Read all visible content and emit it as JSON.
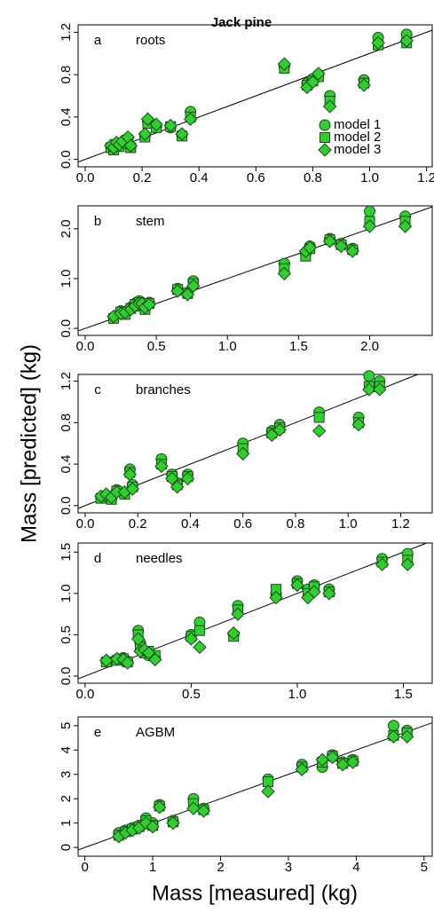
{
  "chart_data": [
    {
      "type": "scatter",
      "title": "Jack pine",
      "panel": "a",
      "subtitle": "roots",
      "legend": "right",
      "x": [
        0.09,
        0.1,
        0.11,
        0.12,
        0.13,
        0.15,
        0.16,
        0.21,
        0.22,
        0.25,
        0.3,
        0.34,
        0.37,
        0.7,
        0.78,
        0.8,
        0.82,
        0.86,
        0.98,
        1.03,
        1.13
      ],
      "series": [
        {
          "name": "model 1",
          "marker": "circle",
          "color": "#33cc33",
          "values": [
            0.12,
            0.1,
            0.15,
            0.13,
            0.16,
            0.2,
            0.12,
            0.22,
            0.36,
            0.31,
            0.3,
            0.23,
            0.45,
            0.88,
            0.72,
            0.76,
            0.8,
            0.6,
            0.75,
            1.15,
            1.18
          ]
        },
        {
          "name": "model 2",
          "marker": "square",
          "color": "#33cc33",
          "values": [
            0.11,
            0.09,
            0.14,
            0.12,
            0.15,
            0.18,
            0.11,
            0.21,
            0.34,
            0.3,
            0.31,
            0.22,
            0.4,
            0.86,
            0.7,
            0.74,
            0.78,
            0.55,
            0.72,
            1.08,
            1.1
          ]
        },
        {
          "name": "model 3",
          "marker": "diamond",
          "color": "#33cc33",
          "values": [
            0.13,
            0.11,
            0.16,
            0.14,
            0.17,
            0.21,
            0.13,
            0.24,
            0.38,
            0.33,
            0.32,
            0.24,
            0.38,
            0.9,
            0.68,
            0.73,
            0.81,
            0.5,
            0.7,
            1.1,
            1.12
          ]
        }
      ],
      "xlim": [
        -0.025,
        1.22
      ],
      "ylim": [
        -0.07,
        1.27
      ],
      "xticks": [
        {
          "value": 0,
          "label": "0.0"
        },
        0.2,
        0.4,
        0.6,
        0.8,
        {
          "value": 1,
          "label": "1.0"
        },
        1.2
      ],
      "yticks": [
        {
          "value": 0,
          "label": "0.0"
        },
        0.4,
        0.8,
        1.2
      ]
    },
    {
      "type": "scatter",
      "panel": "b",
      "subtitle": "stem",
      "x": [
        0.2,
        0.25,
        0.28,
        0.32,
        0.35,
        0.38,
        0.4,
        0.42,
        0.45,
        0.65,
        0.72,
        0.76,
        1.4,
        1.55,
        1.58,
        1.72,
        1.8,
        1.88,
        2.0,
        2.25
      ],
      "series": [
        {
          "marker": "circle",
          "color": "#33cc33",
          "values": [
            0.22,
            0.35,
            0.3,
            0.42,
            0.5,
            0.55,
            0.48,
            0.4,
            0.52,
            0.8,
            0.72,
            0.95,
            1.3,
            1.5,
            1.65,
            1.8,
            1.7,
            1.6,
            2.35,
            2.25
          ]
        },
        {
          "marker": "square",
          "color": "#33cc33",
          "values": [
            0.2,
            0.33,
            0.28,
            0.4,
            0.48,
            0.52,
            0.45,
            0.38,
            0.5,
            0.78,
            0.7,
            0.9,
            1.2,
            1.45,
            1.6,
            1.78,
            1.68,
            1.58,
            2.15,
            2.15
          ]
        },
        {
          "marker": "diamond",
          "color": "#33cc33",
          "values": [
            0.24,
            0.3,
            0.32,
            0.38,
            0.45,
            0.5,
            0.5,
            0.42,
            0.48,
            0.75,
            0.68,
            0.85,
            1.1,
            1.55,
            1.62,
            1.75,
            1.65,
            1.55,
            2.05,
            2.05
          ]
        }
      ],
      "xlim": [
        -0.05,
        2.44
      ],
      "ylim": [
        -0.14,
        2.46
      ],
      "xticks": [
        {
          "value": 0,
          "label": "0.0"
        },
        0.5,
        {
          "value": 1,
          "label": "1.0"
        },
        1.5,
        {
          "value": 2,
          "label": "2.0"
        }
      ],
      "yticks": [
        {
          "value": 0,
          "label": "0.0"
        },
        {
          "value": 1,
          "label": "1.0"
        },
        {
          "value": 2,
          "label": "2.0"
        }
      ]
    },
    {
      "type": "scatter",
      "panel": "c",
      "subtitle": "branches",
      "ylabel": "Mass [predicted] (kg)",
      "x": [
        0.06,
        0.08,
        0.1,
        0.12,
        0.15,
        0.17,
        0.18,
        0.29,
        0.33,
        0.35,
        0.39,
        0.6,
        0.71,
        0.74,
        0.89,
        1.04,
        1.08,
        1.12
      ],
      "series": [
        {
          "marker": "circle",
          "color": "#33cc33",
          "values": [
            0.08,
            0.1,
            0.07,
            0.15,
            0.12,
            0.35,
            0.2,
            0.45,
            0.3,
            0.22,
            0.3,
            0.6,
            0.72,
            0.78,
            0.9,
            0.85,
            1.25,
            1.2
          ]
        },
        {
          "marker": "square",
          "color": "#33cc33",
          "values": [
            0.07,
            0.09,
            0.06,
            0.14,
            0.11,
            0.32,
            0.18,
            0.4,
            0.28,
            0.2,
            0.28,
            0.55,
            0.7,
            0.75,
            0.85,
            0.8,
            1.15,
            1.15
          ]
        },
        {
          "marker": "diamond",
          "color": "#33cc33",
          "values": [
            0.09,
            0.11,
            0.08,
            0.13,
            0.13,
            0.3,
            0.16,
            0.38,
            0.26,
            0.18,
            0.26,
            0.5,
            0.68,
            0.73,
            0.72,
            0.78,
            1.12,
            1.12
          ]
        }
      ],
      "xlim": [
        -0.027,
        1.32
      ],
      "ylim": [
        -0.07,
        1.265
      ],
      "xticks": [
        {
          "value": 0,
          "label": "0.0"
        },
        0.2,
        0.4,
        0.6,
        0.8,
        {
          "value": 1,
          "label": "1.0"
        },
        1.2
      ],
      "yticks": [
        {
          "value": 0,
          "label": "0.0"
        },
        0.4,
        0.8,
        1.2
      ]
    },
    {
      "type": "scatter",
      "panel": "d",
      "subtitle": "needles",
      "x": [
        0.1,
        0.15,
        0.18,
        0.2,
        0.25,
        0.26,
        0.28,
        0.3,
        0.33,
        0.5,
        0.54,
        0.7,
        0.72,
        0.9,
        1.0,
        1.05,
        1.08,
        1.15,
        1.4,
        1.52
      ],
      "series": [
        {
          "marker": "circle",
          "color": "#33cc33",
          "values": [
            0.18,
            0.2,
            0.22,
            0.18,
            0.55,
            0.4,
            0.3,
            0.25,
            0.22,
            0.5,
            0.65,
            0.5,
            0.85,
            1.0,
            1.15,
            1.05,
            1.1,
            1.05,
            1.42,
            1.48
          ]
        },
        {
          "marker": "square",
          "color": "#33cc33",
          "values": [
            0.17,
            0.19,
            0.21,
            0.17,
            0.5,
            0.35,
            0.28,
            0.3,
            0.25,
            0.48,
            0.55,
            0.48,
            0.8,
            1.05,
            1.12,
            1.0,
            1.08,
            1.02,
            1.38,
            1.4
          ]
        },
        {
          "marker": "diamond",
          "color": "#33cc33",
          "values": [
            0.19,
            0.21,
            0.2,
            0.16,
            0.45,
            0.3,
            0.32,
            0.28,
            0.2,
            0.45,
            0.35,
            0.52,
            0.75,
            0.95,
            1.1,
            0.95,
            1.02,
            1.0,
            1.35,
            1.35
          ]
        }
      ],
      "xlim": [
        -0.033,
        1.636
      ],
      "ylim": [
        -0.086,
        1.61
      ],
      "xticks": [
        {
          "value": 0,
          "label": "0.0"
        },
        0.5,
        {
          "value": 1,
          "label": "1.0"
        },
        1.5
      ],
      "yticks": [
        {
          "value": 0,
          "label": "0.0"
        },
        0.5,
        {
          "value": 1,
          "label": "1.0"
        },
        1.5
      ]
    },
    {
      "type": "scatter",
      "panel": "e",
      "subtitle": "AGBM",
      "xlabel": "Mass [measured] (kg)",
      "x": [
        0.5,
        0.6,
        0.7,
        0.8,
        0.9,
        1.0,
        1.1,
        1.3,
        1.6,
        1.75,
        2.7,
        3.2,
        3.5,
        3.65,
        3.8,
        3.95,
        4.55,
        4.75
      ],
      "series": [
        {
          "marker": "circle",
          "color": "#33cc33",
          "values": [
            0.6,
            0.7,
            0.8,
            0.9,
            1.2,
            1.0,
            1.75,
            1.1,
            2.0,
            1.6,
            2.8,
            3.4,
            3.3,
            3.8,
            3.5,
            3.6,
            5.0,
            4.8
          ]
        },
        {
          "marker": "square",
          "color": "#33cc33",
          "values": [
            0.5,
            0.65,
            0.75,
            0.85,
            1.1,
            0.9,
            1.7,
            1.05,
            1.8,
            1.55,
            2.7,
            3.3,
            3.5,
            3.75,
            3.45,
            3.55,
            4.6,
            4.7
          ]
        },
        {
          "marker": "diamond",
          "color": "#33cc33",
          "values": [
            0.45,
            0.6,
            0.7,
            0.8,
            1.0,
            0.85,
            1.65,
            1.0,
            1.6,
            1.5,
            2.3,
            3.2,
            3.6,
            3.7,
            3.4,
            3.5,
            4.55,
            4.55
          ]
        }
      ],
      "xlim": [
        -0.1,
        5.12
      ],
      "ylim": [
        -0.36,
        5.36
      ],
      "xticks": [
        0,
        1,
        2,
        3,
        4,
        5
      ],
      "yticks": [
        0,
        1,
        2,
        3,
        4,
        5
      ]
    }
  ]
}
